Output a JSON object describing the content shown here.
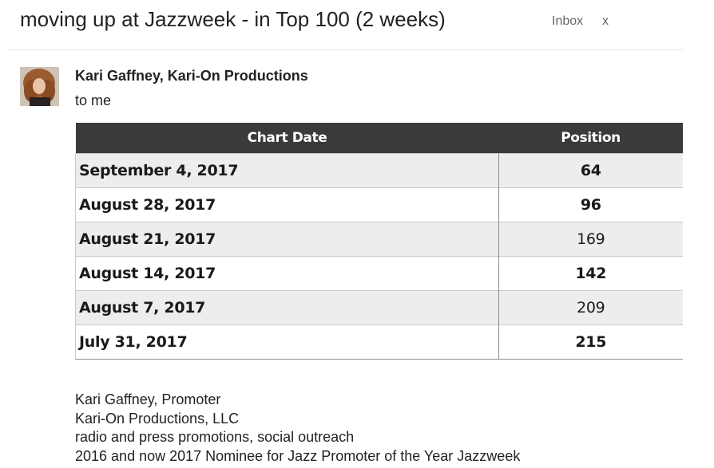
{
  "email": {
    "subject": "moving up at Jazzweek - in Top 100 (2 weeks)",
    "label": "Inbox",
    "label_close": "x",
    "sender": "Kari Gaffney, Kari-On Productions",
    "recipient": "to me"
  },
  "table": {
    "headers": [
      "Chart Date",
      "Position"
    ],
    "rows": [
      {
        "date": "September 4, 2017",
        "position": "64",
        "bold": true
      },
      {
        "date": "August 28, 2017",
        "position": "96",
        "bold": true
      },
      {
        "date": "August 21, 2017",
        "position": "169",
        "bold": false
      },
      {
        "date": "August 14, 2017",
        "position": "142",
        "bold": true
      },
      {
        "date": "August 7, 2017",
        "position": "209",
        "bold": false
      },
      {
        "date": "July 31, 2017",
        "position": "215",
        "bold": true
      }
    ]
  },
  "signature": [
    "Kari Gaffney, Promoter",
    "Kari-On Productions, LLC",
    "radio and press promotions, social outreach",
    "2016 and now 2017 Nominee for Jazz Promoter of the Year Jazzweek"
  ],
  "colors": {
    "header_bg": "#3a3a3a",
    "row_alt": "#ededed"
  }
}
